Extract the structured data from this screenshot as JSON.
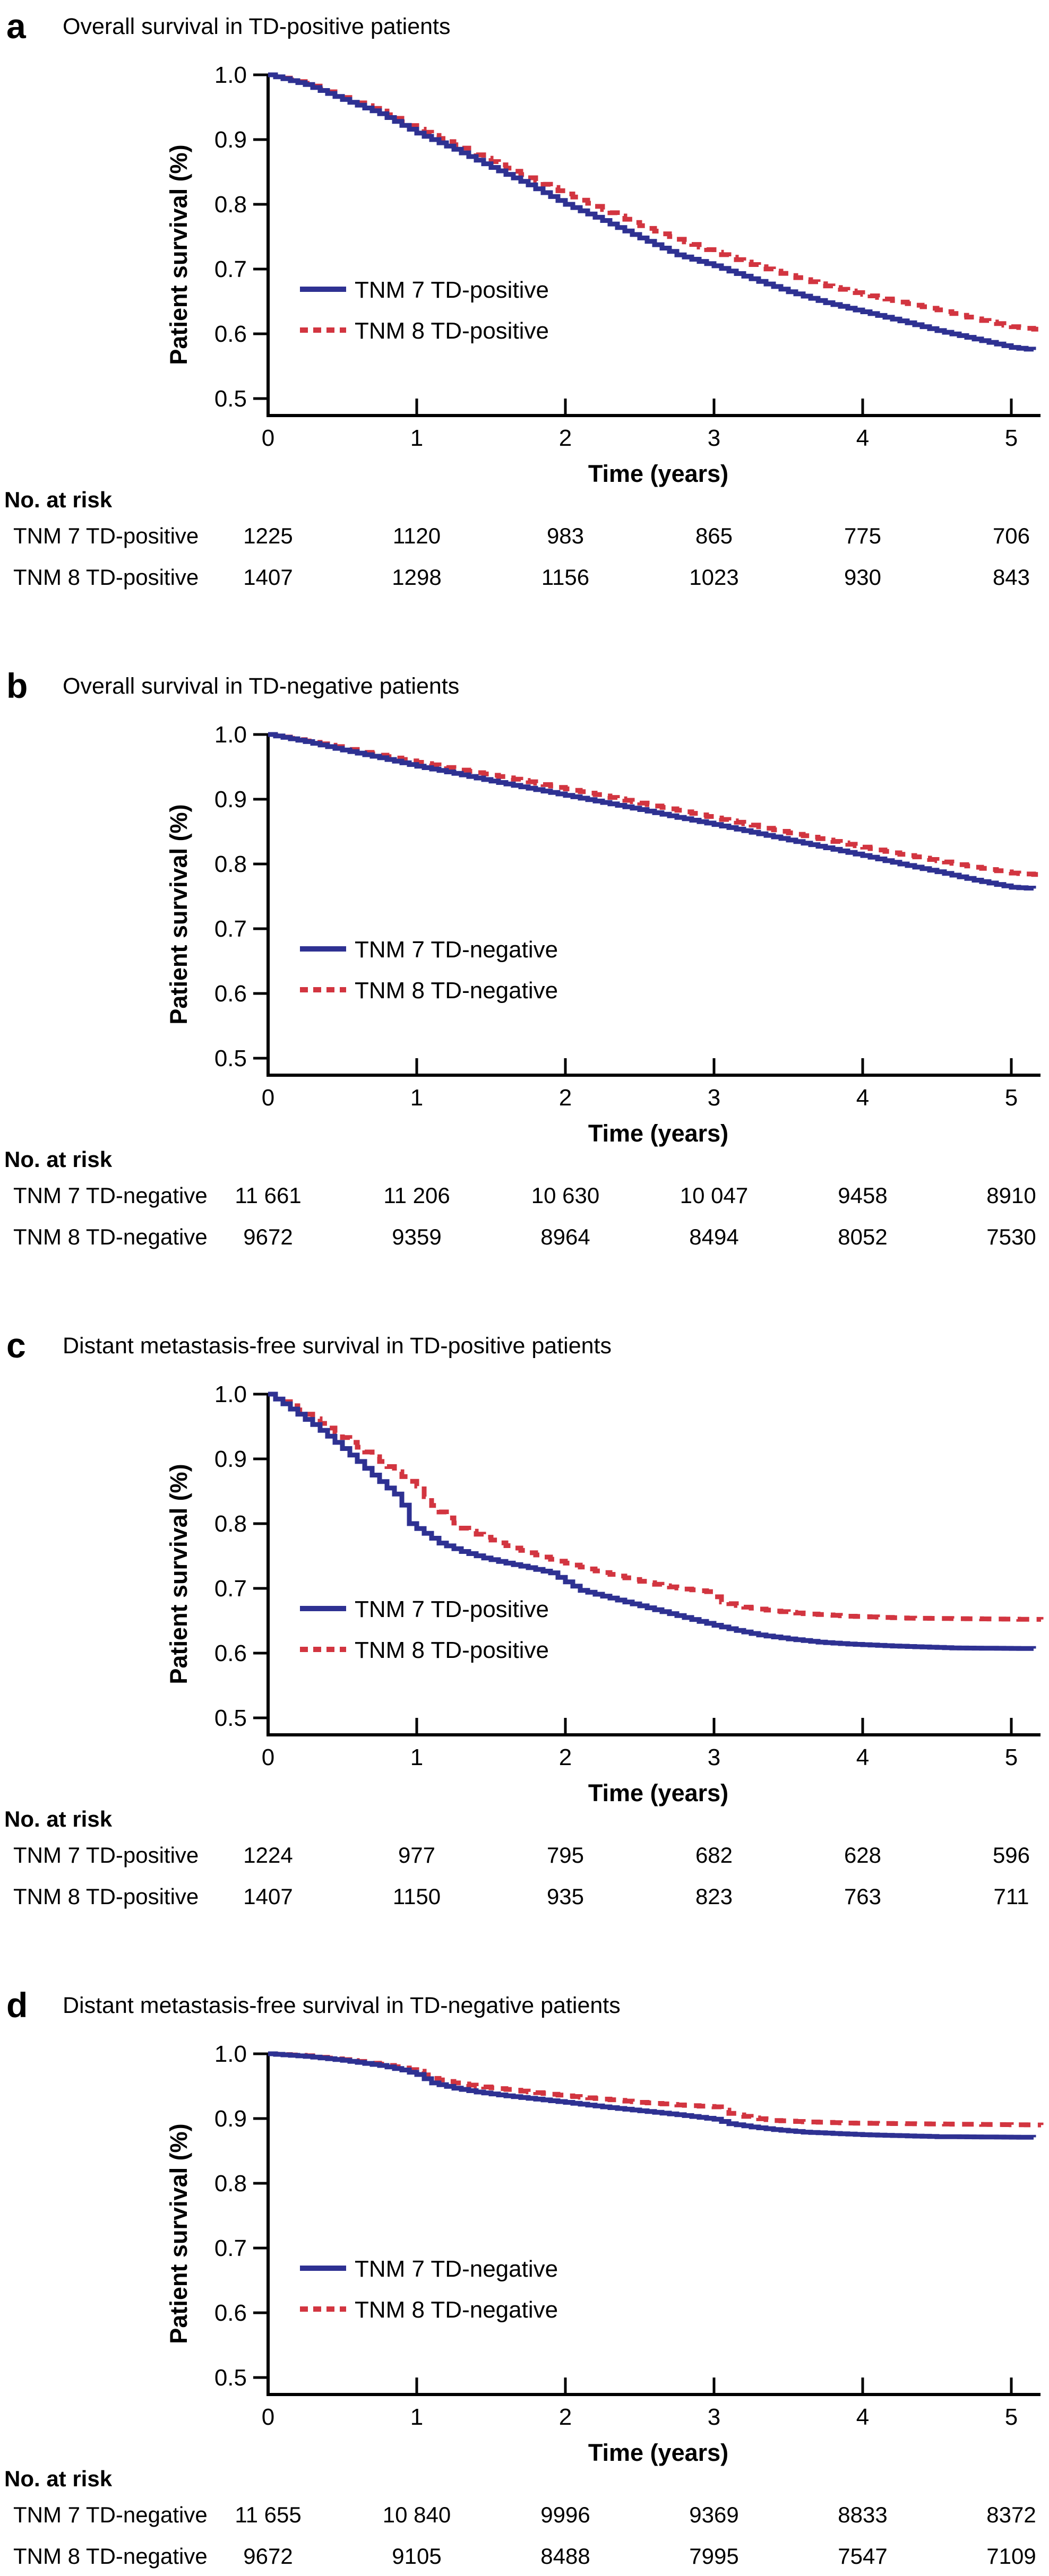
{
  "figure": {
    "risk_header": "No. at risk",
    "xlabel": "Time (years)",
    "ylabel": "Patient survival (%)"
  },
  "colors": {
    "tnm7_blue": "#2e3192",
    "tnm8_red": "#d23540",
    "axis": "#000000"
  },
  "chart_data": [
    {
      "type": "line",
      "subtype": "kaplan-meier-step",
      "panel_letter": "a",
      "title": "Overall survival in TD-positive patients",
      "xlabel": "Time (years)",
      "ylabel": "Patient survival (%)",
      "xticks": [
        "0",
        "1",
        "2",
        "3",
        "4",
        "5"
      ],
      "yticks": [
        "1.0",
        "0.9",
        "0.8",
        "0.7",
        "0.6",
        "0.5"
      ],
      "xlim": [
        0,
        5.3
      ],
      "ylim": [
        0.5,
        1.0
      ],
      "legend_position": "inside lower-left",
      "series": [
        {
          "name": "TNM 7 TD-positive",
          "color": "#2e3192",
          "line_style": "solid",
          "points": [
            [
              0,
              1.0
            ],
            [
              0.25,
              0.985
            ],
            [
              0.5,
              0.962
            ],
            [
              0.75,
              0.94
            ],
            [
              1.0,
              0.91
            ],
            [
              1.25,
              0.885
            ],
            [
              1.5,
              0.857
            ],
            [
              1.75,
              0.83
            ],
            [
              2.0,
              0.8
            ],
            [
              2.25,
              0.775
            ],
            [
              2.5,
              0.748
            ],
            [
              2.75,
              0.722
            ],
            [
              3.0,
              0.705
            ],
            [
              3.25,
              0.685
            ],
            [
              3.5,
              0.665
            ],
            [
              3.75,
              0.648
            ],
            [
              4.0,
              0.634
            ],
            [
              4.25,
              0.62
            ],
            [
              4.5,
              0.605
            ],
            [
              4.75,
              0.592
            ],
            [
              5.0,
              0.579
            ],
            [
              5.15,
              0.575
            ]
          ]
        },
        {
          "name": "TNM 8 TD-positive",
          "color": "#d23540",
          "line_style": "dashed",
          "points": [
            [
              0,
              1.0
            ],
            [
              0.25,
              0.987
            ],
            [
              0.5,
              0.965
            ],
            [
              0.75,
              0.944
            ],
            [
              1.0,
              0.916
            ],
            [
              1.25,
              0.892
            ],
            [
              1.5,
              0.866
            ],
            [
              1.75,
              0.841
            ],
            [
              2.0,
              0.816
            ],
            [
              2.25,
              0.792
            ],
            [
              2.5,
              0.767
            ],
            [
              2.75,
              0.746
            ],
            [
              3.0,
              0.726
            ],
            [
              3.25,
              0.707
            ],
            [
              3.5,
              0.69
            ],
            [
              3.75,
              0.674
            ],
            [
              4.0,
              0.661
            ],
            [
              4.25,
              0.649
            ],
            [
              4.5,
              0.637
            ],
            [
              4.75,
              0.623
            ],
            [
              5.0,
              0.611
            ],
            [
              5.2,
              0.606
            ]
          ]
        }
      ],
      "no_at_risk": {
        "header": "No. at risk",
        "rows": [
          {
            "label": "TNM 7 TD-positive",
            "values": [
              "1225",
              "1120",
              "983",
              "865",
              "775",
              "706"
            ]
          },
          {
            "label": "TNM 8 TD-positive",
            "values": [
              "1407",
              "1298",
              "1156",
              "1023",
              "930",
              "843"
            ]
          }
        ]
      }
    },
    {
      "type": "line",
      "subtype": "kaplan-meier-step",
      "panel_letter": "b",
      "title": "Overall survival in TD-negative patients",
      "xlabel": "Time (years)",
      "ylabel": "Patient survival (%)",
      "xticks": [
        "0",
        "1",
        "2",
        "3",
        "4",
        "5"
      ],
      "yticks": [
        "1.0",
        "0.9",
        "0.8",
        "0.7",
        "0.6",
        "0.5"
      ],
      "xlim": [
        0,
        5.3
      ],
      "ylim": [
        0.5,
        1.0
      ],
      "legend_position": "inside lower-left",
      "series": [
        {
          "name": "TNM 7 TD-negative",
          "color": "#2e3192",
          "line_style": "solid",
          "points": [
            [
              0,
              1.0
            ],
            [
              0.25,
              0.989
            ],
            [
              0.5,
              0.976
            ],
            [
              0.75,
              0.964
            ],
            [
              1.0,
              0.951
            ],
            [
              1.25,
              0.94
            ],
            [
              1.5,
              0.928
            ],
            [
              1.75,
              0.917
            ],
            [
              2.0,
              0.906
            ],
            [
              2.25,
              0.895
            ],
            [
              2.5,
              0.884
            ],
            [
              2.75,
              0.872
            ],
            [
              3.0,
              0.861
            ],
            [
              3.25,
              0.849
            ],
            [
              3.5,
              0.837
            ],
            [
              3.75,
              0.825
            ],
            [
              4.0,
              0.813
            ],
            [
              4.25,
              0.8
            ],
            [
              4.5,
              0.788
            ],
            [
              4.75,
              0.775
            ],
            [
              5.0,
              0.764
            ],
            [
              5.15,
              0.762
            ]
          ]
        },
        {
          "name": "TNM 8 TD-negative",
          "color": "#d23540",
          "line_style": "dashed",
          "points": [
            [
              0,
              1.0
            ],
            [
              0.25,
              0.99
            ],
            [
              0.5,
              0.979
            ],
            [
              0.75,
              0.968
            ],
            [
              1.0,
              0.957
            ],
            [
              1.25,
              0.947
            ],
            [
              1.5,
              0.937
            ],
            [
              1.75,
              0.927
            ],
            [
              2.0,
              0.916
            ],
            [
              2.25,
              0.905
            ],
            [
              2.5,
              0.894
            ],
            [
              2.75,
              0.883
            ],
            [
              3.0,
              0.871
            ],
            [
              3.25,
              0.86
            ],
            [
              3.5,
              0.848
            ],
            [
              3.75,
              0.837
            ],
            [
              4.0,
              0.826
            ],
            [
              4.25,
              0.815
            ],
            [
              4.5,
              0.805
            ],
            [
              4.75,
              0.795
            ],
            [
              5.0,
              0.786
            ],
            [
              5.2,
              0.783
            ]
          ]
        }
      ],
      "no_at_risk": {
        "header": "No. at risk",
        "rows": [
          {
            "label": "TNM 7 TD-negative",
            "values": [
              "11 661",
              "11 206",
              "10 630",
              "10 047",
              "9458",
              "8910"
            ]
          },
          {
            "label": "TNM 8 TD-negative",
            "values": [
              "9672",
              "9359",
              "8964",
              "8494",
              "8052",
              "7530"
            ]
          }
        ]
      }
    },
    {
      "type": "line",
      "subtype": "kaplan-meier-step",
      "panel_letter": "c",
      "title": "Distant metastasis-free survival in TD-positive patients",
      "xlabel": "Time (years)",
      "ylabel": "Patient survival (%)",
      "xticks": [
        "0",
        "1",
        "2",
        "3",
        "4",
        "5"
      ],
      "yticks": [
        "1.0",
        "0.9",
        "0.8",
        "0.7",
        "0.6",
        "0.5"
      ],
      "xlim": [
        0,
        5.3
      ],
      "ylim": [
        0.5,
        1.0
      ],
      "legend_position": "inside lower-left",
      "series": [
        {
          "name": "TNM 7 TD-positive",
          "color": "#2e3192",
          "line_style": "solid",
          "points": [
            [
              0,
              1.0
            ],
            [
              0.1,
              0.985
            ],
            [
              0.2,
              0.969
            ],
            [
              0.3,
              0.953
            ],
            [
              0.4,
              0.935
            ],
            [
              0.5,
              0.916
            ],
            [
              0.6,
              0.896
            ],
            [
              0.7,
              0.875
            ],
            [
              0.8,
              0.855
            ],
            [
              0.88,
              0.84
            ],
            [
              0.95,
              0.8
            ],
            [
              1.05,
              0.785
            ],
            [
              1.15,
              0.77
            ],
            [
              1.3,
              0.757
            ],
            [
              1.45,
              0.747
            ],
            [
              1.6,
              0.739
            ],
            [
              1.75,
              0.732
            ],
            [
              1.9,
              0.724
            ],
            [
              2.0,
              0.71
            ],
            [
              2.1,
              0.697
            ],
            [
              2.25,
              0.688
            ],
            [
              2.4,
              0.679
            ],
            [
              2.55,
              0.67
            ],
            [
              2.7,
              0.661
            ],
            [
              2.85,
              0.652
            ],
            [
              3.0,
              0.643
            ],
            [
              3.15,
              0.635
            ],
            [
              3.3,
              0.628
            ],
            [
              3.5,
              0.622
            ],
            [
              3.7,
              0.617
            ],
            [
              3.9,
              0.614
            ],
            [
              4.2,
              0.611
            ],
            [
              4.6,
              0.608
            ],
            [
              5.15,
              0.607
            ]
          ]
        },
        {
          "name": "TNM 8 TD-positive",
          "color": "#d23540",
          "line_style": "dashed",
          "points": [
            [
              0,
              1.0
            ],
            [
              0.12,
              0.986
            ],
            [
              0.25,
              0.969
            ],
            [
              0.37,
              0.952
            ],
            [
              0.5,
              0.933
            ],
            [
              0.62,
              0.915
            ],
            [
              0.75,
              0.896
            ],
            [
              0.87,
              0.877
            ],
            [
              1.0,
              0.858
            ],
            [
              1.08,
              0.832
            ],
            [
              1.18,
              0.812
            ],
            [
              1.3,
              0.793
            ],
            [
              1.45,
              0.779
            ],
            [
              1.6,
              0.766
            ],
            [
              1.75,
              0.755
            ],
            [
              1.9,
              0.745
            ],
            [
              2.05,
              0.736
            ],
            [
              2.2,
              0.727
            ],
            [
              2.35,
              0.719
            ],
            [
              2.5,
              0.711
            ],
            [
              2.65,
              0.704
            ],
            [
              2.8,
              0.699
            ],
            [
              2.95,
              0.695
            ],
            [
              3.05,
              0.679
            ],
            [
              3.2,
              0.671
            ],
            [
              3.4,
              0.665
            ],
            [
              3.6,
              0.661
            ],
            [
              3.9,
              0.657
            ],
            [
              4.3,
              0.654
            ],
            [
              5.2,
              0.652
            ]
          ]
        }
      ],
      "no_at_risk": {
        "header": "No. at risk",
        "rows": [
          {
            "label": "TNM 7 TD-positive",
            "values": [
              "1224",
              "977",
              "795",
              "682",
              "628",
              "596"
            ]
          },
          {
            "label": "TNM 8 TD-positive",
            "values": [
              "1407",
              "1150",
              "935",
              "823",
              "763",
              "711"
            ]
          }
        ]
      }
    },
    {
      "type": "line",
      "subtype": "kaplan-meier-step",
      "panel_letter": "d",
      "title": "Distant metastasis-free survival in TD-negative patients",
      "xlabel": "Time (years)",
      "ylabel": "Patient survival (%)",
      "xticks": [
        "0",
        "1",
        "2",
        "3",
        "4",
        "5"
      ],
      "yticks": [
        "1.0",
        "0.9",
        "0.8",
        "0.7",
        "0.6",
        "0.5"
      ],
      "xlim": [
        0,
        5.3
      ],
      "ylim": [
        0.5,
        1.0
      ],
      "legend_position": "inside lower-left",
      "series": [
        {
          "name": "TNM 7 TD-negative",
          "color": "#2e3192",
          "line_style": "solid",
          "points": [
            [
              0,
              1.0
            ],
            [
              0.25,
              0.996
            ],
            [
              0.5,
              0.99
            ],
            [
              0.75,
              0.982
            ],
            [
              0.9,
              0.975
            ],
            [
              1.0,
              0.968
            ],
            [
              1.1,
              0.955
            ],
            [
              1.25,
              0.947
            ],
            [
              1.4,
              0.941
            ],
            [
              1.6,
              0.935
            ],
            [
              1.8,
              0.93
            ],
            [
              2.0,
              0.925
            ],
            [
              2.25,
              0.918
            ],
            [
              2.5,
              0.912
            ],
            [
              2.75,
              0.906
            ],
            [
              3.0,
              0.899
            ],
            [
              3.1,
              0.892
            ],
            [
              3.25,
              0.887
            ],
            [
              3.4,
              0.883
            ],
            [
              3.6,
              0.879
            ],
            [
              3.8,
              0.877
            ],
            [
              4.0,
              0.875
            ],
            [
              4.5,
              0.872
            ],
            [
              5.15,
              0.871
            ]
          ]
        },
        {
          "name": "TNM 8 TD-negative",
          "color": "#d23540",
          "line_style": "dashed",
          "points": [
            [
              0,
              1.0
            ],
            [
              0.25,
              0.997
            ],
            [
              0.5,
              0.991
            ],
            [
              0.75,
              0.984
            ],
            [
              0.9,
              0.978
            ],
            [
              1.0,
              0.973
            ],
            [
              1.1,
              0.962
            ],
            [
              1.25,
              0.955
            ],
            [
              1.4,
              0.95
            ],
            [
              1.6,
              0.945
            ],
            [
              1.8,
              0.94
            ],
            [
              2.0,
              0.935
            ],
            [
              2.25,
              0.93
            ],
            [
              2.5,
              0.925
            ],
            [
              2.75,
              0.921
            ],
            [
              3.0,
              0.918
            ],
            [
              3.1,
              0.908
            ],
            [
              3.25,
              0.901
            ],
            [
              3.4,
              0.897
            ],
            [
              3.6,
              0.895
            ],
            [
              3.9,
              0.893
            ],
            [
              4.3,
              0.892
            ],
            [
              5.2,
              0.89
            ]
          ]
        }
      ],
      "no_at_risk": {
        "header": "No. at risk",
        "rows": [
          {
            "label": "TNM 7 TD-negative",
            "values": [
              "11 655",
              "10 840",
              "9996",
              "9369",
              "8833",
              "8372"
            ]
          },
          {
            "label": "TNM 8 TD-negative",
            "values": [
              "9672",
              "9105",
              "8488",
              "7995",
              "7547",
              "7109"
            ]
          }
        ]
      }
    }
  ]
}
